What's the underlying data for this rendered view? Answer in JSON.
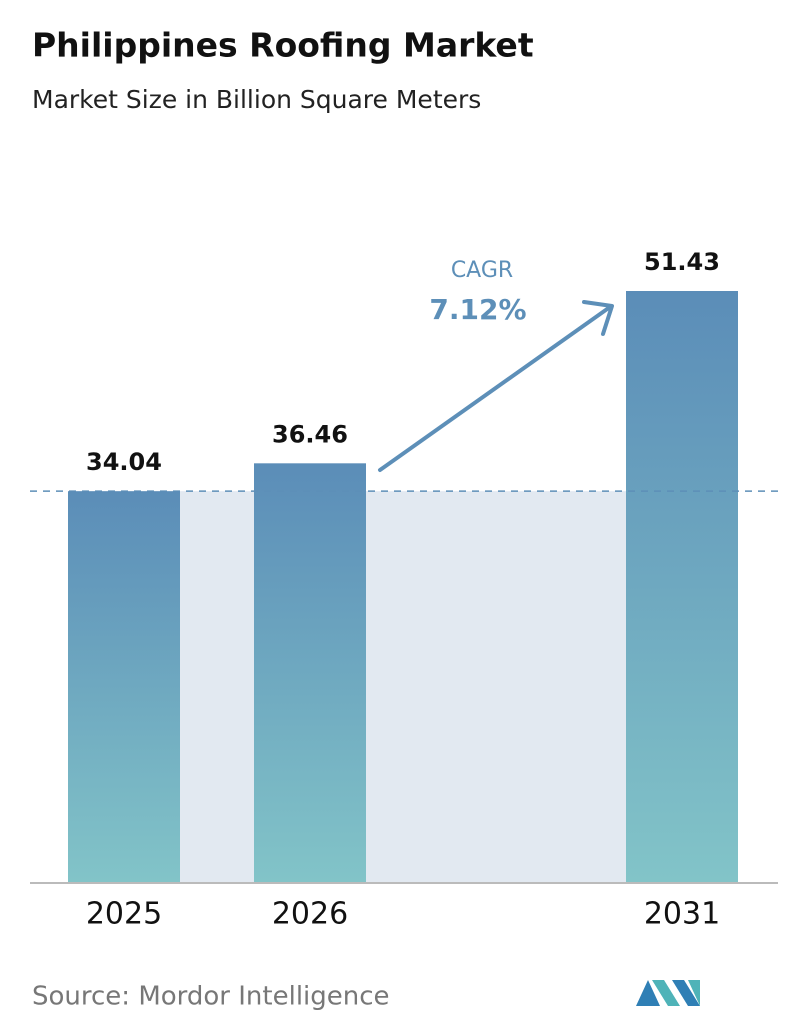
{
  "chart_data": {
    "type": "bar",
    "title": "Philippines Roofing Market",
    "subtitle": "Market Size in Billion Square Meters",
    "categories": [
      "2025",
      "2026",
      "2031"
    ],
    "values": [
      34.04,
      36.46,
      51.43
    ],
    "colors": [
      "#5b8db8",
      "#82c4c8"
    ],
    "cagr_label": "CAGR",
    "cagr_value": "7.12%",
    "source": "Source: Mordor Intelligence"
  }
}
